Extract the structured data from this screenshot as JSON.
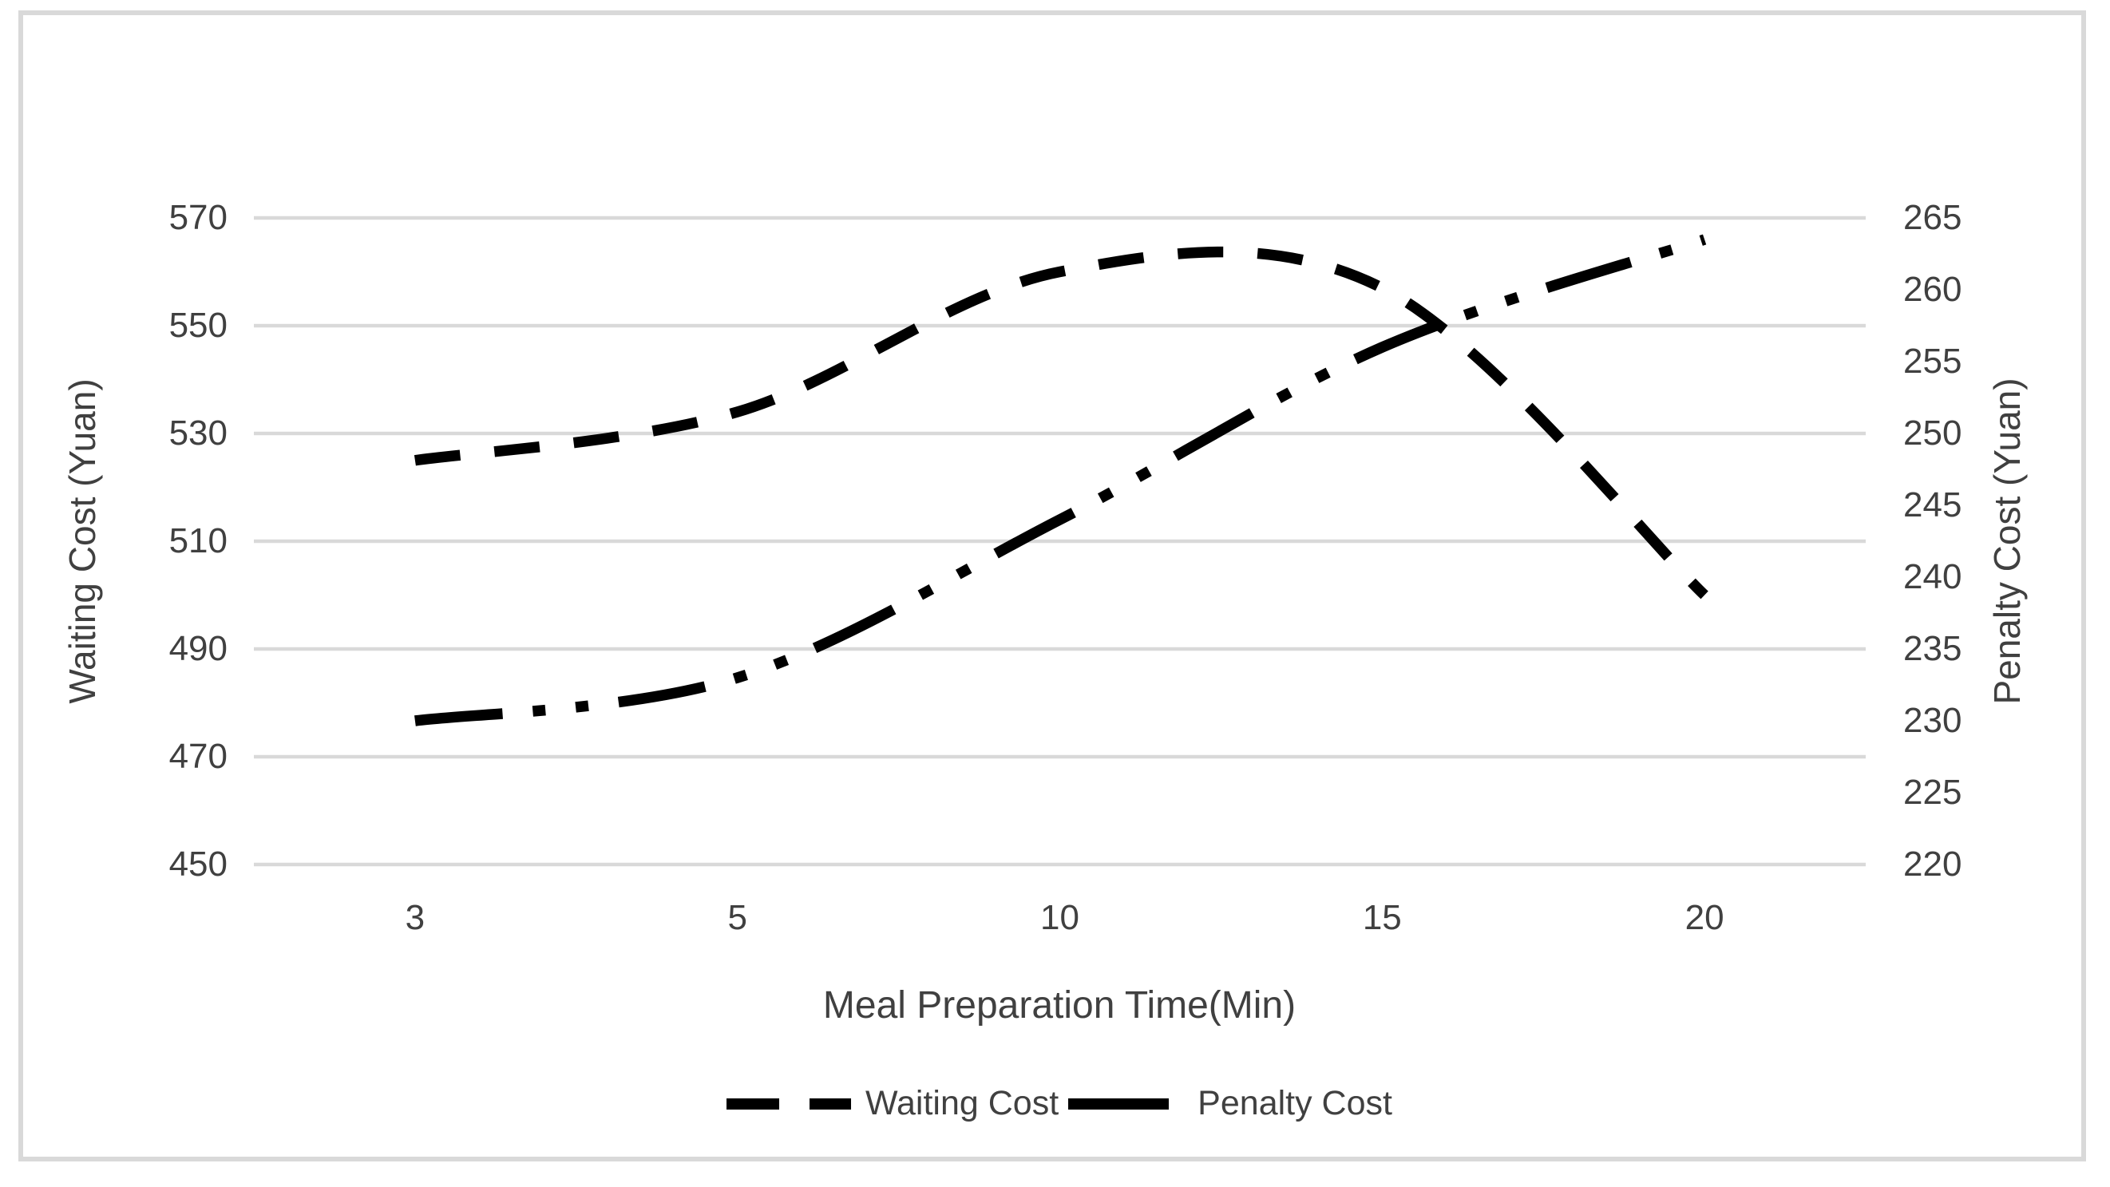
{
  "chart_data": {
    "type": "line",
    "x_axis": {
      "title": "Meal Preparation Time(Min)",
      "kind": "category",
      "tick_labels": [
        "3",
        "5",
        "10",
        "15",
        "20"
      ]
    },
    "y_axis_left": {
      "title": "Waiting Cost (Yuan)",
      "min": 450,
      "max": 570,
      "step": 20,
      "ticks": [
        570,
        550,
        530,
        510,
        490,
        470,
        450
      ]
    },
    "y_axis_right": {
      "title": "Penalty Cost (Yuan)",
      "min": 220,
      "max": 265,
      "step": 5,
      "ticks": [
        265,
        260,
        255,
        250,
        245,
        240,
        235,
        230,
        225,
        220
      ]
    },
    "categories": [
      3,
      5,
      10,
      15,
      20
    ],
    "series": [
      {
        "name": "Waiting Cost",
        "axis": "left",
        "line_style": "short-dash",
        "values": [
          525,
          534,
          560,
          557,
          500
        ]
      },
      {
        "name": "Penalty Cost",
        "axis": "right",
        "line_style": "long-dash-dot-dot",
        "values": [
          230,
          233,
          244,
          256,
          263.5
        ]
      }
    ],
    "legend": {
      "position": "bottom",
      "entries": [
        "Waiting Cost",
        "Penalty Cost"
      ]
    },
    "grid": "horizontal",
    "smoothed_lines": true,
    "colors": {
      "line": "#000000",
      "grid": "#d9d9d9",
      "text": "#404040",
      "border": "#d9d9d9",
      "background": "#ffffff"
    }
  }
}
